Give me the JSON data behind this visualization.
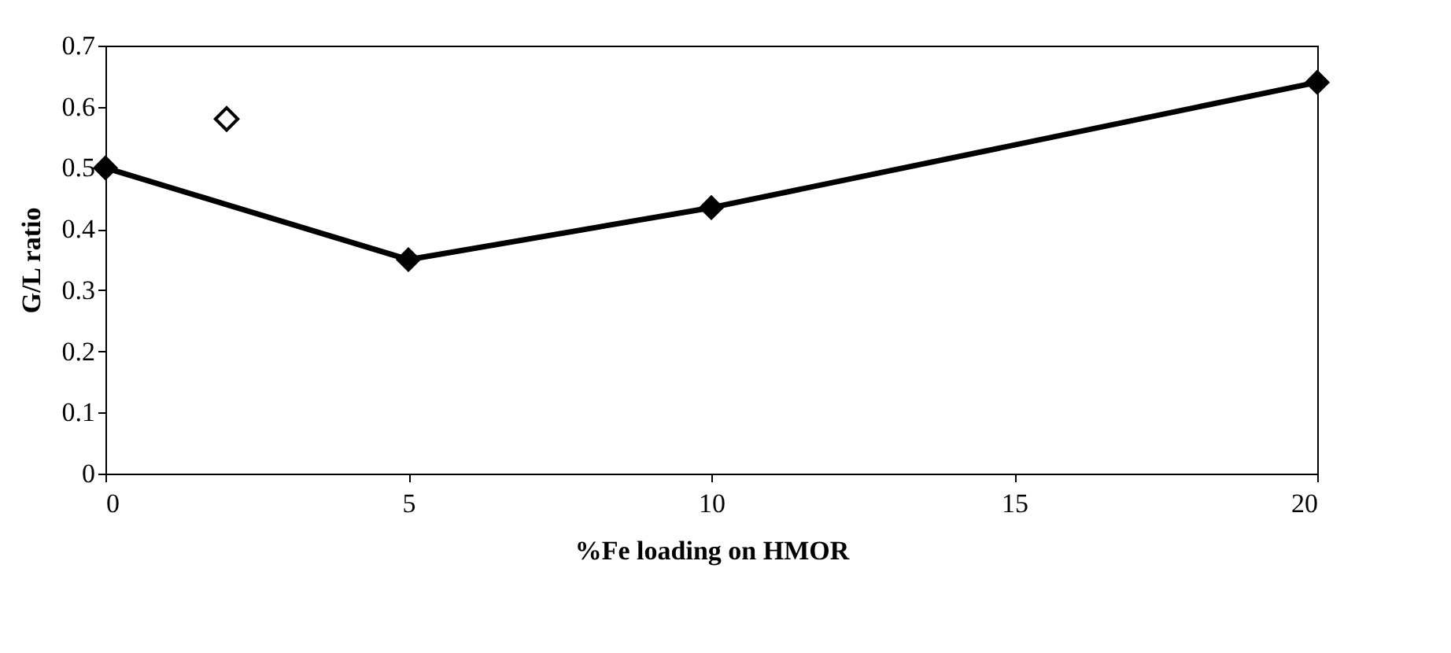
{
  "chart_data": {
    "type": "line",
    "xlabel": "%Fe loading on HMOR",
    "ylabel": "G/L ratio",
    "xlim": [
      0,
      20
    ],
    "xticks": [
      0,
      5,
      10,
      15,
      20
    ],
    "ylim": [
      0,
      0.7
    ],
    "yticks": [
      0,
      0.1,
      0.2,
      0.3,
      0.4,
      0.5,
      0.6,
      0.7
    ],
    "grid": false,
    "legend": false,
    "marker": "diamond",
    "line_style": "solid",
    "series": [
      {
        "color": "#000000",
        "x": [
          0,
          5,
          10,
          20
        ],
        "values": [
          0.5,
          0.35,
          0.435,
          0.64
        ]
      },
      {
        "type": "scatter",
        "color": "#000000",
        "x": [
          2
        ],
        "values": [
          0.58
        ]
      }
    ]
  }
}
